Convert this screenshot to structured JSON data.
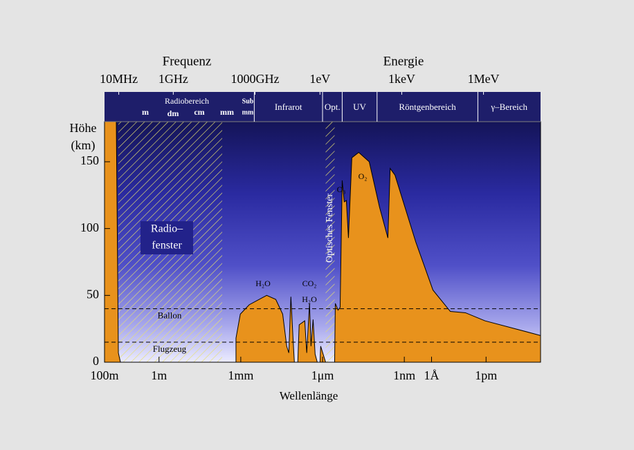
{
  "chart_data": {
    "type": "area",
    "top_axis_titles": [
      "Frequenz",
      "Energie"
    ],
    "top_ticks": [
      {
        "value": 30,
        "label": "10MHz"
      },
      {
        "value": 0.3,
        "label": "1GHz"
      },
      {
        "value": 0.0003,
        "label": "1000GHz"
      },
      {
        "value": 1.24e-06,
        "label": "1eV"
      },
      {
        "value": 1.24e-09,
        "label": "1keV"
      },
      {
        "value": 1.24e-12,
        "label": "1MeV"
      }
    ],
    "bands": [
      {
        "label": "Radiobereich",
        "range": [
          100,
          0.00032
        ],
        "sublabels": [
          "m",
          "dm",
          "cm",
          "mm",
          "Sub",
          "mm"
        ]
      },
      {
        "label": "Infrarot",
        "range": [
          0.00032,
          1e-06
        ]
      },
      {
        "label": "Opt.",
        "range": [
          1e-06,
          1.9e-07
        ]
      },
      {
        "label": "UV",
        "range": [
          1.9e-07,
          1e-08
        ]
      },
      {
        "label": "Röntgenbereich",
        "range": [
          1e-08,
          2e-12
        ]
      },
      {
        "label": "γ–Bereich",
        "range": [
          2e-12,
          1e-14
        ]
      }
    ],
    "xlabel": "Wellenlänge",
    "ylabel": [
      "Höhe",
      "(km)"
    ],
    "x_scale": "log",
    "xlim": [
      100,
      1e-14
    ],
    "xticks": [
      {
        "value": 100,
        "label": "100m"
      },
      {
        "value": 1,
        "label": "1m"
      },
      {
        "value": 0.001,
        "label": "1mm"
      },
      {
        "value": 1e-06,
        "label": "1μm"
      },
      {
        "value": 1e-09,
        "label": "1nm"
      },
      {
        "value": 1e-10,
        "label": "1Å"
      },
      {
        "value": 1e-12,
        "label": "1pm"
      }
    ],
    "ylim": [
      0,
      180
    ],
    "yticks": [
      0,
      50,
      100,
      150
    ],
    "series": [
      {
        "color": "#e8921c",
        "x": [
          100,
          37,
          31,
          26,
          0.0015,
          0.0015,
          0.00104,
          0.00049,
          0.000112,
          5.2e-05,
          2.9e-05,
          2.06e-05,
          1.73e-05,
          1.45e-05,
          1.21e-05,
          1.08e-05,
          8.1e-06,
          7.2e-06,
          4.5e-06,
          3.8e-06,
          3e-06,
          2.65e-06,
          2.22e-06,
          1.87e-06,
          1.56e-06,
          1.24e-06,
          1.17e-06,
          7.7e-07,
          3.6e-07,
          3.4e-07,
          2.7e-07,
          2.26e-07,
          1.9e-07,
          1.6e-07,
          1.34e-07,
          1.12e-07,
          8.4e-08,
          4.7e-08,
          1.94e-08,
          8.1e-09,
          4e-09,
          3.3e-09,
          2.2e-09,
          3.8e-10,
          8.9e-11,
          2.05e-11,
          5.7e-12,
          1.1e-12,
          1e-14
        ],
        "values": [
          180,
          180,
          7,
          0,
          0,
          18,
          36,
          43,
          50,
          47,
          36,
          12,
          7,
          49,
          18,
          0,
          0,
          28,
          31,
          7,
          44,
          12,
          32,
          6,
          0,
          0,
          12,
          0,
          0,
          44,
          39,
          41,
          136,
          120,
          121,
          93,
          153,
          157,
          150,
          116,
          93,
          145,
          140,
          90,
          54,
          38,
          37,
          31,
          20
        ]
      }
    ],
    "reference_lines": [
      {
        "value": 40,
        "label": "Ballon"
      },
      {
        "value": 15,
        "label": "Flugzeug"
      }
    ],
    "windows": [
      {
        "label": [
          "Radio–",
          "fenster"
        ],
        "range": [
          31,
          0.0048
        ]
      },
      {
        "label": [
          "Optisches Fenster"
        ],
        "range": [
          7.7e-07,
          3.6e-07
        ]
      }
    ],
    "annotations": [
      "H₂O",
      "CO₂",
      "H₂O",
      "O₃",
      "O₂"
    ]
  }
}
